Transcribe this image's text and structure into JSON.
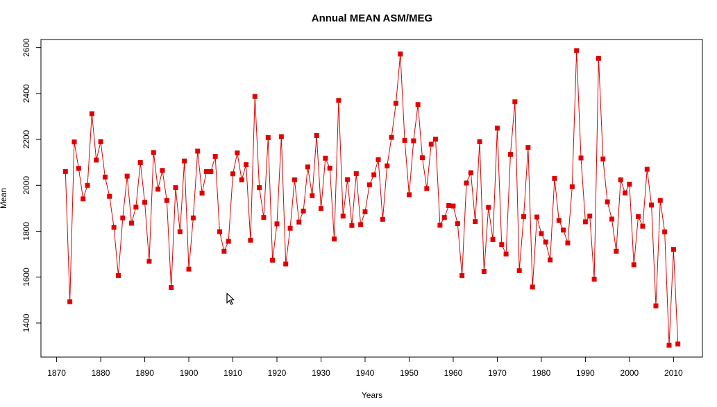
{
  "chart_data": {
    "type": "line",
    "title": "Annual MEAN ASM/MEG",
    "xlabel": "Years",
    "ylabel": "Mean",
    "xlim": [
      1872,
      2011
    ],
    "ylim": [
      1303,
      2584
    ],
    "x_ticks": [
      1870,
      1880,
      1890,
      1900,
      1910,
      1920,
      1930,
      1940,
      1950,
      1960,
      1970,
      1980,
      1990,
      2000,
      2010
    ],
    "y_ticks": [
      1400,
      1600,
      1800,
      2000,
      2200,
      2400,
      2600
    ],
    "grid": false,
    "legend": "none",
    "colors": {
      "series": "#e00000",
      "axis": "#000000"
    },
    "marker": "square",
    "series": [
      {
        "x": [
          1872,
          1873,
          1874,
          1875,
          1876,
          1877,
          1878,
          1879,
          1880,
          1881,
          1882,
          1883,
          1884,
          1885,
          1886,
          1887,
          1888,
          1889,
          1890,
          1891,
          1892,
          1893,
          1894,
          1895,
          1896,
          1897,
          1898,
          1899,
          1900,
          1901,
          1902,
          1903,
          1904,
          1905,
          1906,
          1907,
          1908,
          1909,
          1910,
          1911,
          1912,
          1913,
          1914,
          1915,
          1916,
          1917,
          1918,
          1919,
          1920,
          1921,
          1922,
          1923,
          1924,
          1925,
          1926,
          1927,
          1928,
          1929,
          1930,
          1931,
          1932,
          1933,
          1934,
          1935,
          1936,
          1937,
          1938,
          1939,
          1940,
          1941,
          1942,
          1943,
          1944,
          1945,
          1946,
          1947,
          1948,
          1949,
          1950,
          1951,
          1952,
          1953,
          1954,
          1955,
          1956,
          1957,
          1958,
          1959,
          1960,
          1961,
          1962,
          1963,
          1964,
          1965,
          1966,
          1967,
          1968,
          1969,
          1970,
          1971,
          1972,
          1973,
          1974,
          1975,
          1976,
          1977,
          1978,
          1979,
          1980,
          1981,
          1982,
          1983,
          1984,
          1985,
          1986,
          1987,
          1988,
          1989,
          1990,
          1991,
          1992,
          1993,
          1994,
          1995,
          1996,
          1997,
          1998,
          1999,
          2000,
          2001,
          2002,
          2003,
          2004,
          2005,
          2006,
          2007,
          2008,
          2009,
          2010,
          2011
        ],
        "values": [
          2060,
          1493,
          2189,
          2074,
          1941,
          2000,
          2312,
          2110,
          2190,
          2036,
          1952,
          1817,
          1607,
          1858,
          2040,
          1835,
          1905,
          2099,
          1926,
          1669,
          2143,
          1983,
          2065,
          1934,
          1555,
          1990,
          1798,
          2106,
          1635,
          1858,
          2149,
          1966,
          2060,
          2060,
          2126,
          1798,
          1713,
          1756,
          2050,
          2141,
          2024,
          2090,
          1761,
          2387,
          1990,
          1860,
          2208,
          1674,
          1832,
          2212,
          1657,
          1813,
          2024,
          1840,
          1888,
          2080,
          1955,
          2217,
          1899,
          2118,
          2075,
          1766,
          2370,
          1866,
          2025,
          1825,
          2051,
          1829,
          1885,
          2002,
          2046,
          2112,
          1852,
          2085,
          2209,
          2357,
          2572,
          2196,
          1959,
          2194,
          2352,
          2120,
          1986,
          2179,
          2201,
          1826,
          1860,
          1912,
          1910,
          1833,
          1607,
          2010,
          2055,
          1842,
          2190,
          1625,
          1904,
          1764,
          2249,
          1742,
          1701,
          2135,
          2364,
          1628,
          1864,
          2165,
          1557,
          1862,
          1790,
          1753,
          1675,
          2030,
          1847,
          1805,
          1749,
          1994,
          2587,
          2119,
          1841,
          1866,
          1591,
          2553,
          2115,
          1928,
          1853,
          1713,
          2024,
          1967,
          2005,
          1654,
          1864,
          1822,
          2070,
          1914,
          1475,
          1934,
          1797,
          1303,
          1721,
          1309
        ]
      }
    ]
  }
}
